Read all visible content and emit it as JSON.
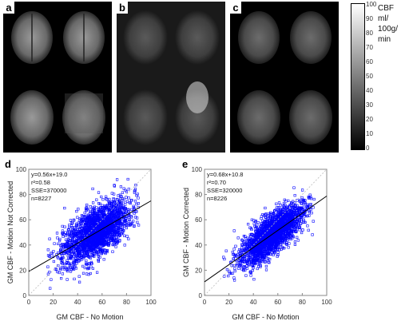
{
  "panels": [
    "a",
    "b",
    "c"
  ],
  "colorbar": {
    "label_lines": [
      "CBF",
      "ml/",
      "100g/",
      "min"
    ],
    "ticks": [
      "100",
      "90",
      "80",
      "70",
      "60",
      "50",
      "40",
      "30",
      "20",
      "10",
      "0"
    ]
  },
  "scatter_plots": [
    {
      "letter": "d",
      "stats": [
        "y=0.56x+19.0",
        "r²=0.58",
        "SSE=370000",
        "n=8227"
      ],
      "xlabel": "GM CBF - No Motion",
      "ylabel": "GM CBF - Motion Not Corrected"
    },
    {
      "letter": "e",
      "stats": [
        "y=0.68x+10.8",
        "r²=0.70",
        "SSE=320000",
        "n=8226"
      ],
      "xlabel": "GM CBF - No Motion",
      "ylabel": "GM CBF - Motion Corrected"
    }
  ],
  "chart_data": [
    {
      "type": "scatter",
      "xlabel": "GM CBF - No Motion",
      "ylabel": "GM CBF - Motion Not Corrected",
      "xlim": [
        0,
        100
      ],
      "ylim": [
        0,
        100
      ],
      "xticks": [
        "0",
        "20",
        "40",
        "60",
        "80",
        "100"
      ],
      "yticks": [
        "0",
        "20",
        "40",
        "60",
        "80",
        "100"
      ],
      "fit": {
        "slope": 0.56,
        "intercept": 19.0
      },
      "stats": [
        "y=0.56x+19.0",
        "r²=0.58",
        "SSE=370000",
        "n=8227"
      ],
      "n": 8227,
      "x_range": [
        15,
        90
      ],
      "marker_color": "#0000ff",
      "identity_line": true
    },
    {
      "type": "scatter",
      "xlabel": "GM CBF - No Motion",
      "ylabel": "GM CBF - Motion Corrected",
      "xlim": [
        0,
        100
      ],
      "ylim": [
        0,
        100
      ],
      "xticks": [
        "0",
        "20",
        "40",
        "60",
        "80",
        "100"
      ],
      "yticks": [
        "0",
        "20",
        "40",
        "60",
        "80",
        "100"
      ],
      "fit": {
        "slope": 0.68,
        "intercept": 10.8
      },
      "stats": [
        "y=0.68x+10.8",
        "r²=0.70",
        "SSE=320000",
        "n=8226"
      ],
      "n": 8226,
      "x_range": [
        15,
        90
      ],
      "marker_color": "#0000ff",
      "identity_line": true
    }
  ]
}
